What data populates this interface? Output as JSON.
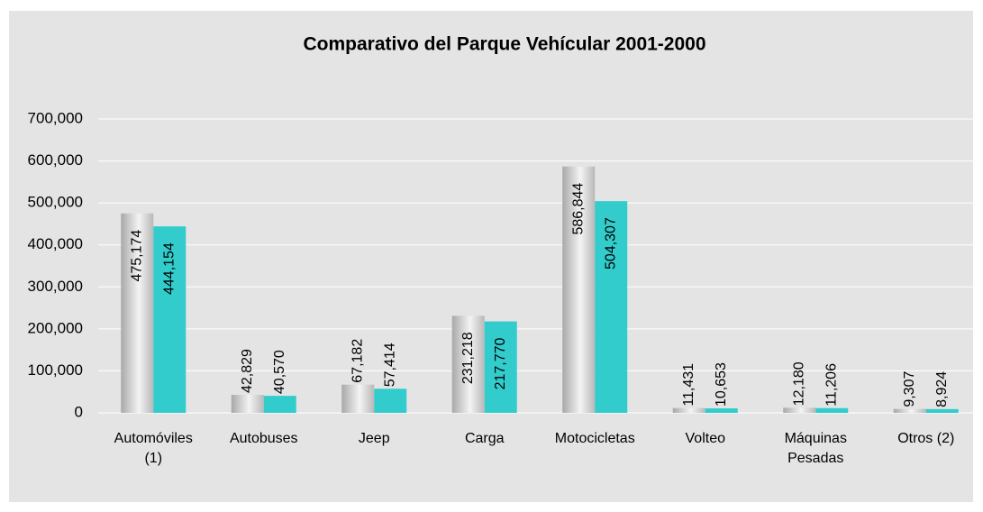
{
  "chart_data": {
    "type": "bar",
    "title": "Comparativo  del  Parque  Vehícular 2001-2000",
    "categories": [
      "Automóviles\n(1)",
      "Autobuses",
      "Jeep",
      "Carga",
      "Motocicletas",
      "Volteo",
      "Máquinas\nPesadas",
      "Otros (2)"
    ],
    "series": [
      {
        "color": "#c8c8c8",
        "values": [
          475174,
          42829,
          67182,
          231218,
          586844,
          11431,
          12180,
          9307
        ],
        "value_labels": [
          "475,174",
          "42,829",
          "67,182",
          "231,218",
          "586,844",
          "11,431",
          "12,180",
          "9,307"
        ]
      },
      {
        "color": "#33cccc",
        "values": [
          444154,
          40570,
          57414,
          217770,
          504307,
          10653,
          11206,
          8924
        ],
        "value_labels": [
          "444,154",
          "40,570",
          "57,414",
          "217,770",
          "504,307",
          "10,653",
          "11,206",
          "8,924"
        ]
      }
    ],
    "ylim": [
      0,
      700000
    ],
    "yticks": [
      0,
      {
        "value": 100000,
        "label": "100,000"
      },
      {
        "value": 200000,
        "label": "200,000"
      },
      {
        "value": 300000,
        "label": "300,000"
      },
      {
        "value": 400000,
        "label": "400,000"
      },
      {
        "value": 500000,
        "label": "500,000"
      },
      {
        "value": 600000,
        "label": "600,000"
      },
      {
        "value": 700000,
        "label": "700,000"
      }
    ],
    "grid": true
  }
}
